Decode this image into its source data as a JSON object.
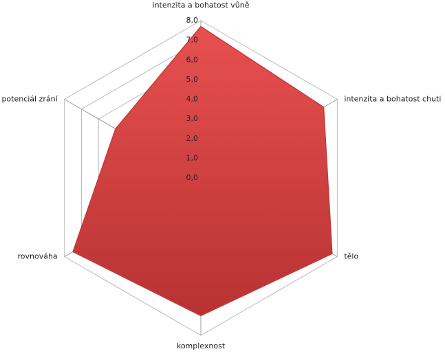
{
  "chart_data": {
    "type": "radar",
    "categories": [
      "intenzita a bohatost  vůně",
      "intenzita a bohatost  chuti",
      "tělo",
      "komplexnost",
      "rovnováha",
      "potenciál zrání"
    ],
    "series": [
      {
        "color": "#d94444",
        "values": [
          7.7,
          7.2,
          7.7,
          7.0,
          7.5,
          5.0
        ]
      }
    ],
    "ylim": [
      0,
      8
    ],
    "yticks": [
      {
        "value": 0,
        "label": "0,0"
      },
      {
        "value": 1,
        "label": "1,0"
      },
      {
        "value": 2,
        "label": "2,0"
      },
      {
        "value": 3,
        "label": "3,0"
      },
      {
        "value": 4,
        "label": "4,0"
      },
      {
        "value": 5,
        "label": "5,0"
      },
      {
        "value": 6,
        "label": "6,0"
      },
      {
        "value": 7,
        "label": "7,0"
      },
      {
        "value": 8,
        "label": "8,0"
      }
    ],
    "grid": true
  }
}
